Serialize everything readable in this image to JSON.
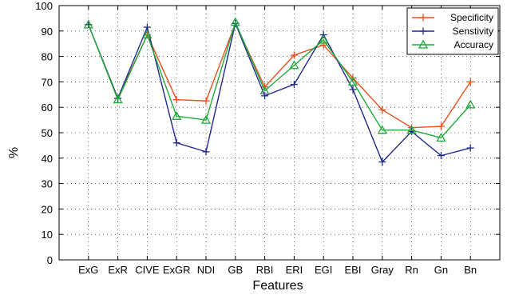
{
  "chart_data": {
    "type": "line",
    "title": "",
    "xlabel": "Features",
    "ylabel": "%",
    "categories": [
      "ExG",
      "ExR",
      "CIVE",
      "ExGR",
      "NDI",
      "GB",
      "RBI",
      "ERI",
      "EGI",
      "EBI",
      "Gray",
      "Rn",
      "Gn",
      "Bn"
    ],
    "ylim": [
      0,
      100
    ],
    "yticks": [
      0,
      10,
      20,
      30,
      40,
      50,
      60,
      70,
      80,
      90,
      100
    ],
    "grid": true,
    "legend_position": "top-right",
    "series": [
      {
        "name": "Specificity",
        "color": "#e8501f",
        "marker": "plus",
        "values": [
          92.5,
          63.5,
          88.5,
          63,
          62.5,
          93,
          68,
          80.5,
          84.5,
          71.5,
          59,
          52,
          52.5,
          70
        ]
      },
      {
        "name": "Senstivity",
        "color": "#1f2a8c",
        "marker": "plus",
        "values": [
          92.5,
          63.5,
          91.5,
          46,
          42.5,
          93,
          64.5,
          69,
          88.5,
          67,
          38.5,
          50.5,
          41,
          44
        ]
      },
      {
        "name": "Accuracy",
        "color": "#1faa3a",
        "marker": "triangle",
        "values": [
          92.5,
          63,
          88.5,
          56.5,
          55,
          93.5,
          66.5,
          76.5,
          86.5,
          70,
          51,
          51,
          48,
          61
        ]
      }
    ]
  }
}
